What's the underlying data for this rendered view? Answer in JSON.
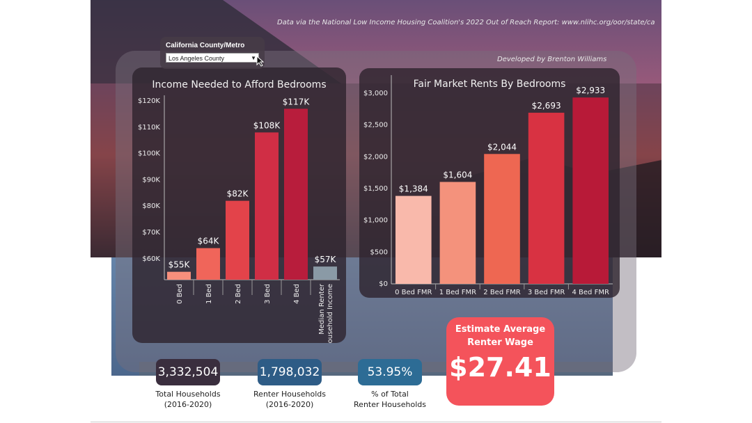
{
  "source_note": "Data via the National Low Income Housing Coalition's 2022 Out of Reach Report: www.nlihc.org/oor/state/ca",
  "developer_note": "Developed by Brenton Williams",
  "filter": {
    "label": "California County/Metro",
    "value": "Los Angeles County"
  },
  "colors": {
    "bar_shades": [
      "#f78f7c",
      "#f0655a",
      "#e3434a",
      "#d02e45",
      "#b81d3c"
    ],
    "fmr_shades": [
      "#f9b9ab",
      "#f4927c",
      "#ee6752",
      "#d83242",
      "#b81a38"
    ],
    "median": "#8a9aa6",
    "wage_bg": "#f4535b",
    "kpi_total": "#3a2e3e",
    "kpi_renter": "#2e5c86",
    "kpi_pct": "#2d6c95"
  },
  "kpis": [
    {
      "value": "3,332,504",
      "label": "Total Households\n(2016-2020)"
    },
    {
      "value": "1,798,032",
      "label": "Renter Households\n(2016-2020)"
    },
    {
      "value": "53.95%",
      "label": "% of Total\nRenter Households"
    }
  ],
  "wage": {
    "label": "Estimate Average\nRenter Wage",
    "value": "$27.41"
  },
  "chart_data": [
    {
      "type": "bar",
      "title": "Income Needed to Afford Bedrooms",
      "categories": [
        "0 Bed",
        "1 Bed",
        "2 Bed",
        "3 Bed",
        "4 Bed",
        "Median Renter Household Income"
      ],
      "values": [
        55,
        64,
        82,
        108,
        117,
        57
      ],
      "value_labels": [
        "$55K",
        "$64K",
        "$82K",
        "$108K",
        "$117K",
        "$57K"
      ],
      "yticks": [
        "$60K",
        "$70K",
        "$80K",
        "$90K",
        "$100K",
        "$110K",
        "$120K"
      ],
      "ylim": [
        52,
        120
      ],
      "unit": "thousand USD",
      "grid": false
    },
    {
      "type": "bar",
      "title": "Fair Market Rents By Bedrooms",
      "categories": [
        "0 Bed FMR",
        "1 Bed FMR",
        "2 Bed FMR",
        "3 Bed FMR",
        "4 Bed FMR"
      ],
      "values": [
        1384,
        1604,
        2044,
        2693,
        2933
      ],
      "value_labels": [
        "$1,384",
        "$1,604",
        "$2,044",
        "$2,693",
        "$2,933"
      ],
      "yticks": [
        "$0",
        "$500",
        "$1,000",
        "$1,500",
        "$2,000",
        "$2,500",
        "$3,000"
      ],
      "ylim": [
        0,
        3000
      ],
      "grid": false
    }
  ]
}
